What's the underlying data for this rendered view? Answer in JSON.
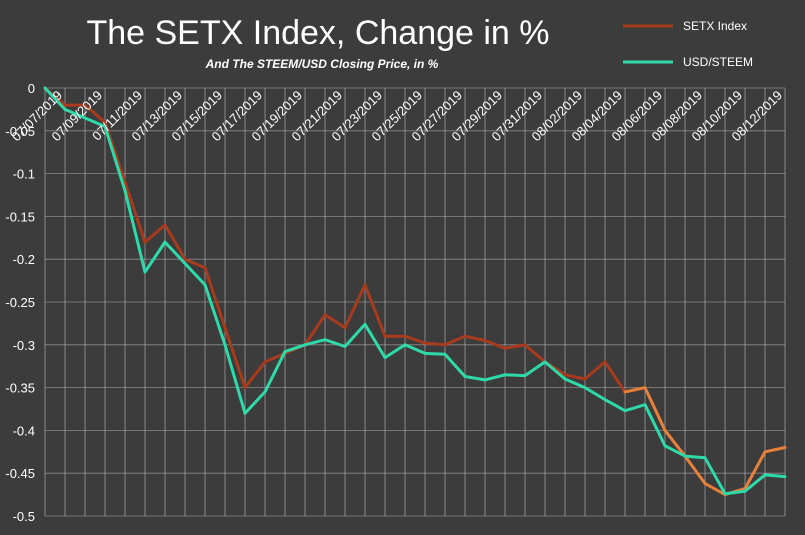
{
  "chart_data": {
    "type": "line",
    "title": "The SETX Index, Change in %",
    "subtitle": "And The STEEM/USD Closing Price, in %",
    "xlabel": "",
    "ylabel": "",
    "ylim": [
      -0.5,
      0
    ],
    "yticks": [
      "0",
      "-0.05",
      "-0.1",
      "-0.15",
      "-0.2",
      "-0.25",
      "-0.3",
      "-0.35",
      "-0.4",
      "-0.45",
      "-0.5"
    ],
    "ytick_values": [
      0,
      -0.05,
      -0.1,
      -0.15,
      -0.2,
      -0.25,
      -0.3,
      -0.35,
      -0.4,
      -0.45,
      -0.5
    ],
    "x_labels": [
      "07/07/2019",
      "07/09/2019",
      "07/11/2019",
      "07/13/2019",
      "07/15/2019",
      "07/17/2019",
      "07/19/2019",
      "07/21/2019",
      "07/23/2019",
      "07/25/2019",
      "07/27/2019",
      "07/29/2019",
      "07/31/2019",
      "08/02/2019",
      "08/04/2019",
      "08/06/2019",
      "08/08/2019",
      "08/10/2019",
      "08/12/2019"
    ],
    "grid": true,
    "legend_position": "top-right",
    "series": [
      {
        "name": "SETX Index",
        "color": "#a83a1e",
        "highlight_color": "#e8803a",
        "highlight_from_index": 29,
        "values": [
          0,
          -0.02,
          -0.02,
          -0.04,
          -0.11,
          -0.18,
          -0.16,
          -0.2,
          -0.21,
          -0.28,
          -0.35,
          -0.32,
          -0.31,
          -0.3,
          -0.265,
          -0.28,
          -0.23,
          -0.29,
          -0.29,
          -0.298,
          -0.3,
          -0.29,
          -0.295,
          -0.304,
          -0.3,
          -0.32,
          -0.335,
          -0.34,
          -0.32,
          -0.355,
          -0.35,
          -0.4,
          -0.43,
          -0.462,
          -0.475,
          -0.468,
          -0.425,
          -0.42
        ]
      },
      {
        "name": "USD/STEEM",
        "color": "#2ed9aa",
        "values": [
          0,
          -0.025,
          -0.035,
          -0.045,
          -0.12,
          -0.215,
          -0.18,
          -0.205,
          -0.23,
          -0.3,
          -0.38,
          -0.355,
          -0.308,
          -0.3,
          -0.294,
          -0.302,
          -0.276,
          -0.315,
          -0.3,
          -0.31,
          -0.311,
          -0.337,
          -0.341,
          -0.335,
          -0.336,
          -0.32,
          -0.34,
          -0.35,
          -0.364,
          -0.377,
          -0.37,
          -0.418,
          -0.43,
          -0.432,
          -0.474,
          -0.471,
          -0.452,
          -0.454
        ]
      }
    ]
  }
}
